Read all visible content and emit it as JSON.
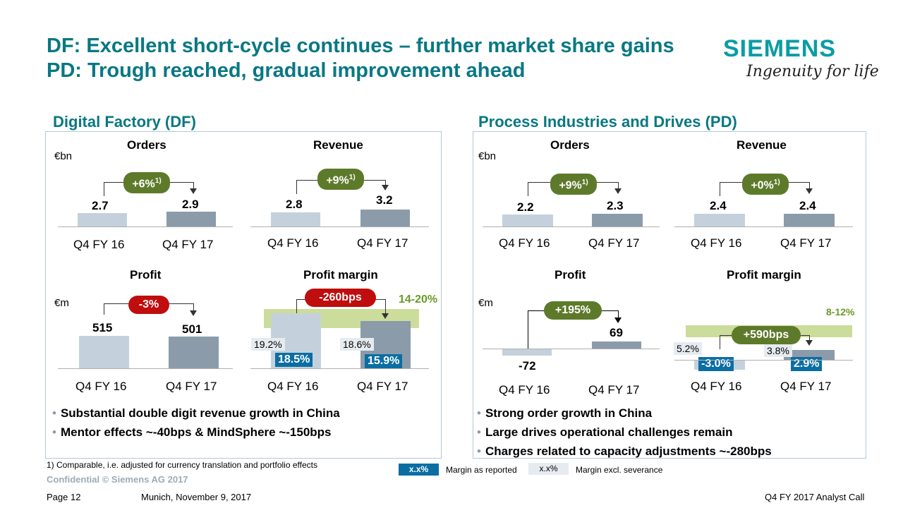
{
  "title": {
    "line1": "DF: Excellent short-cycle continues – further market share gains",
    "line2": "PD: Trough reached, gradual improvement ahead"
  },
  "logo": {
    "brand": "SIEMENS",
    "tagline": "Ingenuity for life"
  },
  "df": {
    "section_title": "Digital Factory (DF)",
    "unit_bn": "€bn",
    "unit_m": "€m",
    "orders": {
      "title": "Orders",
      "q16_value": "2.7",
      "q17_value": "2.9",
      "change": "+6%",
      "change_sup": "1)",
      "q16_label": "Q4 FY 16",
      "q17_label": "Q4 FY 17"
    },
    "revenue": {
      "title": "Revenue",
      "q16_value": "2.8",
      "q17_value": "3.2",
      "change": "+9%",
      "change_sup": "1)",
      "q16_label": "Q4 FY 16",
      "q17_label": "Q4 FY 17"
    },
    "profit": {
      "title": "Profit",
      "q16_value": "515",
      "q17_value": "501",
      "change": "-3%",
      "q16_label": "Q4 FY 16",
      "q17_label": "Q4 FY 17"
    },
    "margin": {
      "title": "Profit margin",
      "change": "-260bps",
      "target": "14-20%",
      "q16_excl": "19.2%",
      "q17_excl": "18.6%",
      "q16_reported": "18.5%",
      "q17_reported": "15.9%",
      "q16_label": "Q4 FY 16",
      "q17_label": "Q4 FY 17"
    },
    "bullets": [
      "Substantial double digit  revenue growth in China",
      "Mentor effects ~-40bps & MindSphere ~-150bps"
    ]
  },
  "pd": {
    "section_title": "Process Industries and Drives (PD)",
    "unit_bn": "€bn",
    "unit_m": "€m",
    "orders": {
      "title": "Orders",
      "q16_value": "2.2",
      "q17_value": "2.3",
      "change": "+9%",
      "change_sup": "1)",
      "q16_label": "Q4 FY 16",
      "q17_label": "Q4 FY 17"
    },
    "revenue": {
      "title": "Revenue",
      "q16_value": "2.4",
      "q17_value": "2.4",
      "change": "+0%",
      "change_sup": "1)",
      "q16_label": "Q4 FY 16",
      "q17_label": "Q4 FY 17"
    },
    "profit": {
      "title": "Profit",
      "q16_value": "-72",
      "q17_value": "69",
      "change": "+195%",
      "q16_label": "Q4 FY 16",
      "q17_label": "Q4 FY 17"
    },
    "margin": {
      "title": "Profit margin",
      "change": "+590bps",
      "target": "8-12%",
      "q16_excl": "5.2%",
      "q17_excl": "3.8%",
      "q16_reported": "-3.0%",
      "q17_reported": "2.9%",
      "q16_label": "Q4 FY 16",
      "q17_label": "Q4 FY 17"
    },
    "bullets": [
      "Strong order growth in China",
      "Large drives operational challenges remain",
      "Charges related to capacity adjustments ~-280bps"
    ]
  },
  "footnote": "1) Comparable, i.e. adjusted for currency translation and portfolio effects",
  "legend": {
    "reported_box": "x.x%",
    "reported_text": "Margin as reported",
    "excl_box": "x.x%",
    "excl_text": "Margin excl. severance"
  },
  "confidential": "Confidential © Siemens AG 2017",
  "footer": {
    "page": "Page 12",
    "location_date": "Munich, November 9, 2017",
    "event": "Q4 FY 2017 Analyst Call"
  },
  "colors": {
    "title_teal": "#087883",
    "logo_teal": "#089da3",
    "bar_light": "#c4d1dc",
    "bar_dark": "#8b9ba9",
    "pill_green": "#5d7a2a",
    "pill_red": "#c00d0d",
    "reported_blue": "#0b6ea3",
    "target_band": "#ccdc9a"
  }
}
